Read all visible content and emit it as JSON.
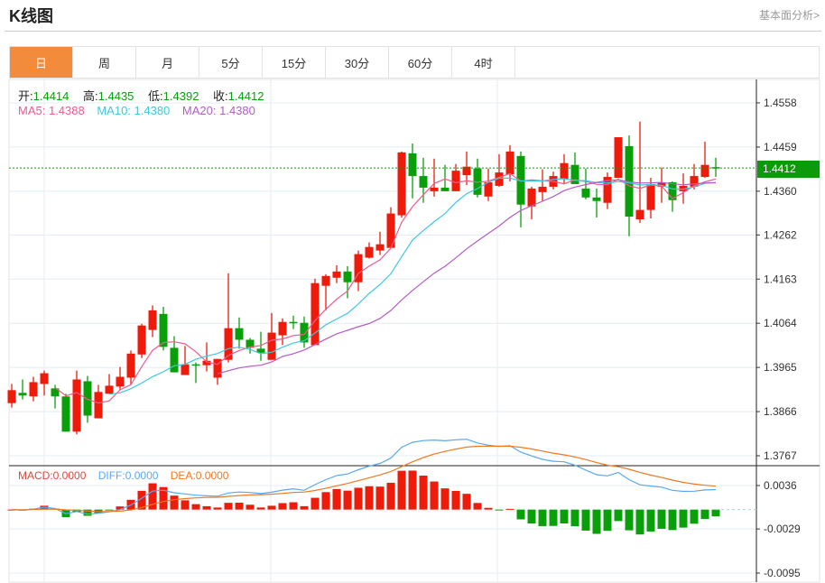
{
  "header": {
    "title": "K线图",
    "link": "基本面分析>"
  },
  "tabs": [
    {
      "label": "日",
      "active": true
    },
    {
      "label": "周"
    },
    {
      "label": "月"
    },
    {
      "label": "5分"
    },
    {
      "label": "15分"
    },
    {
      "label": "30分"
    },
    {
      "label": "60分"
    },
    {
      "label": "4时"
    }
  ],
  "ohlc_legend": {
    "open_label": "开:",
    "open": "1.4414",
    "high_label": "高:",
    "high": "1.4435",
    "low_label": "低:",
    "low": "1.4392",
    "close_label": "收:",
    "close": "1.4412"
  },
  "ma_legend": {
    "ma5": "MA5: 1.4388",
    "ma10": "MA10: 1.4380",
    "ma20": "MA20: 1.4380"
  },
  "macd_legend": {
    "macd": "MACD:0.0000",
    "diff": "DIFF:0.0000",
    "dea": "DEA:0.0000"
  },
  "current_price": "1.4412",
  "colors": {
    "up": "#f01a0a",
    "down": "#08a008",
    "ma5": "#ef5b8c",
    "ma10": "#3cc8e0",
    "ma20": "#b35cc8",
    "diff": "#5aa8f0",
    "dea": "#f07820",
    "accent": "#f28c3c"
  },
  "chart_data": {
    "type": "candlestick",
    "ylim": [
      1.3767,
      1.4558
    ],
    "yticks": [
      "1.4558",
      "1.4459",
      "1.4360",
      "1.4262",
      "1.4163",
      "1.4064",
      "1.3965",
      "1.3866",
      "1.3767"
    ],
    "macd_ylim": [
      -0.0095,
      0.0036
    ],
    "macd_yticks": [
      "0.0036",
      "-0.0029",
      "-0.0095"
    ],
    "candles": [
      [
        1.3885,
        1.3928,
        1.3875,
        1.3914
      ],
      [
        1.3908,
        1.3938,
        1.3893,
        1.3902
      ],
      [
        1.39,
        1.3944,
        1.3889,
        1.3932
      ],
      [
        1.3928,
        1.3958,
        1.3902,
        1.3952
      ],
      [
        1.3918,
        1.3926,
        1.3873,
        1.39
      ],
      [
        1.39,
        1.3906,
        1.3821,
        1.3821
      ],
      [
        1.3821,
        1.3958,
        1.3815,
        1.3938
      ],
      [
        1.3934,
        1.3946,
        1.3841,
        1.3857
      ],
      [
        1.3851,
        1.3926,
        1.3851,
        1.391
      ],
      [
        1.3906,
        1.395,
        1.3906,
        1.3924
      ],
      [
        1.3922,
        1.3966,
        1.3914,
        1.3944
      ],
      [
        1.3942,
        1.4003,
        1.3926,
        1.3996
      ],
      [
        1.3994,
        1.4063,
        1.3986,
        1.4059
      ],
      [
        1.4049,
        1.4104,
        1.4033,
        1.4093
      ],
      [
        1.4085,
        1.4101,
        1.4003,
        1.4011
      ],
      [
        1.4009,
        1.4035,
        1.3954,
        1.3954
      ],
      [
        1.3948,
        1.4013,
        1.3948,
        1.3972
      ],
      [
        1.3972,
        1.3976,
        1.393,
        1.397
      ],
      [
        1.397,
        1.4021,
        1.3956,
        1.398
      ],
      [
        1.3942,
        1.3984,
        1.3926,
        1.3984
      ],
      [
        1.3982,
        1.4176,
        1.3976,
        1.4053
      ],
      [
        1.4053,
        1.4077,
        1.4007,
        1.4027
      ],
      [
        1.4027,
        1.4031,
        1.3996,
        1.4009
      ],
      [
        1.4007,
        1.4045,
        1.398,
        1.3998
      ],
      [
        1.3982,
        1.4087,
        1.3982,
        1.4043
      ],
      [
        1.4037,
        1.4075,
        1.4015,
        1.4067
      ],
      [
        1.4067,
        1.4081,
        1.4051,
        1.4065
      ],
      [
        1.4065,
        1.4079,
        1.4009,
        1.4021
      ],
      [
        1.4015,
        1.4164,
        1.4015,
        1.4154
      ],
      [
        1.4148,
        1.4174,
        1.4093,
        1.417
      ],
      [
        1.4166,
        1.4194,
        1.4154,
        1.418
      ],
      [
        1.418,
        1.4192,
        1.412,
        1.4156
      ],
      [
        1.4156,
        1.4227,
        1.4136,
        1.4219
      ],
      [
        1.4211,
        1.4245,
        1.4209,
        1.4235
      ],
      [
        1.4227,
        1.4269,
        1.4217,
        1.4241
      ],
      [
        1.4233,
        1.4324,
        1.4233,
        1.431
      ],
      [
        1.4306,
        1.4449,
        1.4301,
        1.4447
      ],
      [
        1.4445,
        1.4467,
        1.4344,
        1.4394
      ],
      [
        1.4394,
        1.4435,
        1.4334,
        1.4368
      ],
      [
        1.436,
        1.4433,
        1.4348,
        1.4368
      ],
      [
        1.4368,
        1.4419,
        1.436,
        1.436
      ],
      [
        1.436,
        1.4421,
        1.436,
        1.4406
      ],
      [
        1.4396,
        1.4449,
        1.4374,
        1.4415
      ],
      [
        1.4411,
        1.4433,
        1.4346,
        1.4352
      ],
      [
        1.4348,
        1.4411,
        1.4338,
        1.438
      ],
      [
        1.4372,
        1.4443,
        1.437,
        1.4402
      ],
      [
        1.4398,
        1.4463,
        1.4382,
        1.4449
      ],
      [
        1.4439,
        1.4449,
        1.4279,
        1.433
      ],
      [
        1.4326,
        1.437,
        1.4297,
        1.4366
      ],
      [
        1.4358,
        1.4409,
        1.4338,
        1.437
      ],
      [
        1.437,
        1.4404,
        1.4364,
        1.4394
      ],
      [
        1.4388,
        1.4443,
        1.4376,
        1.4423
      ],
      [
        1.4419,
        1.4447,
        1.4376,
        1.4376
      ],
      [
        1.4366,
        1.4411,
        1.4342,
        1.4346
      ],
      [
        1.4346,
        1.4366,
        1.4301,
        1.4338
      ],
      [
        1.4334,
        1.4402,
        1.432,
        1.4392
      ],
      [
        1.439,
        1.4481,
        1.439,
        1.4481
      ],
      [
        1.4461,
        1.4485,
        1.4259,
        1.4303
      ],
      [
        1.4297,
        1.4516,
        1.4289,
        1.4318
      ],
      [
        1.4318,
        1.439,
        1.4299,
        1.4376
      ],
      [
        1.437,
        1.4413,
        1.4334,
        1.438
      ],
      [
        1.438,
        1.4382,
        1.4314,
        1.434
      ],
      [
        1.436,
        1.44,
        1.4332,
        1.4372
      ],
      [
        1.437,
        1.4421,
        1.4364,
        1.4394
      ],
      [
        1.4392,
        1.4471,
        1.439,
        1.4419
      ],
      [
        1.4414,
        1.4435,
        1.4392,
        1.4412
      ]
    ]
  }
}
